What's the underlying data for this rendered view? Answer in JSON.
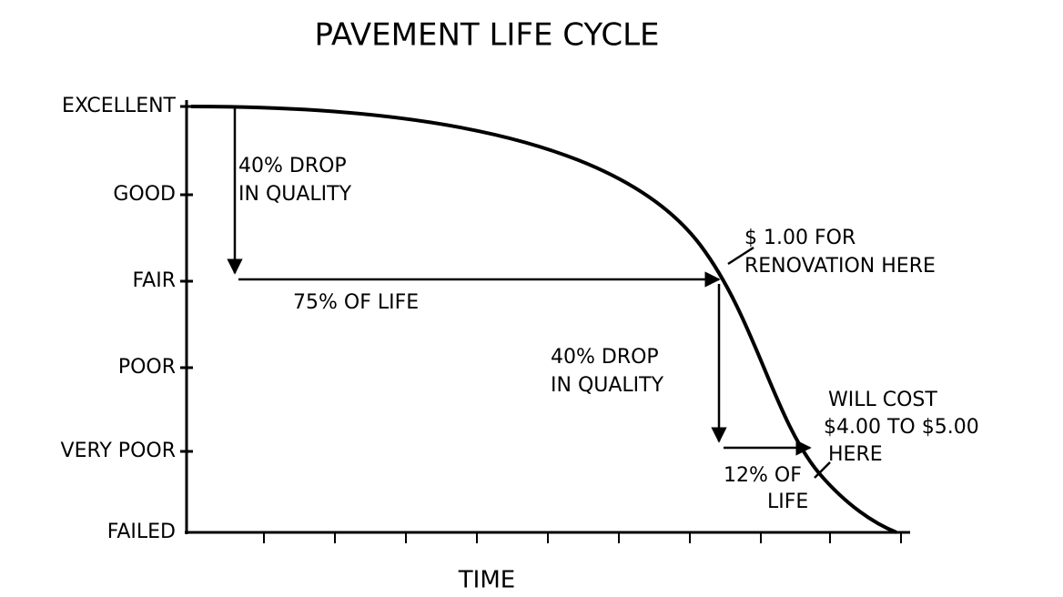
{
  "title": "PAVEMENT LIFE CYCLE",
  "y_axis": {
    "labels": [
      "EXCELLENT",
      "GOOD",
      "FAIR",
      "POOR",
      "VERY POOR",
      "FAILED"
    ]
  },
  "x_axis": {
    "label": "TIME"
  },
  "annotations": {
    "first_drop": [
      "40% DROP",
      "IN QUALITY"
    ],
    "first_life": "75% OF LIFE",
    "renovation": [
      "$ 1.00 FOR",
      "RENOVATION HERE"
    ],
    "second_drop": [
      "40% DROP",
      "IN QUALITY"
    ],
    "second_life": [
      "12% OF",
      "LIFE"
    ],
    "late_cost": [
      "WILL COST",
      "$4.00 TO $5.00",
      "HERE"
    ]
  }
}
